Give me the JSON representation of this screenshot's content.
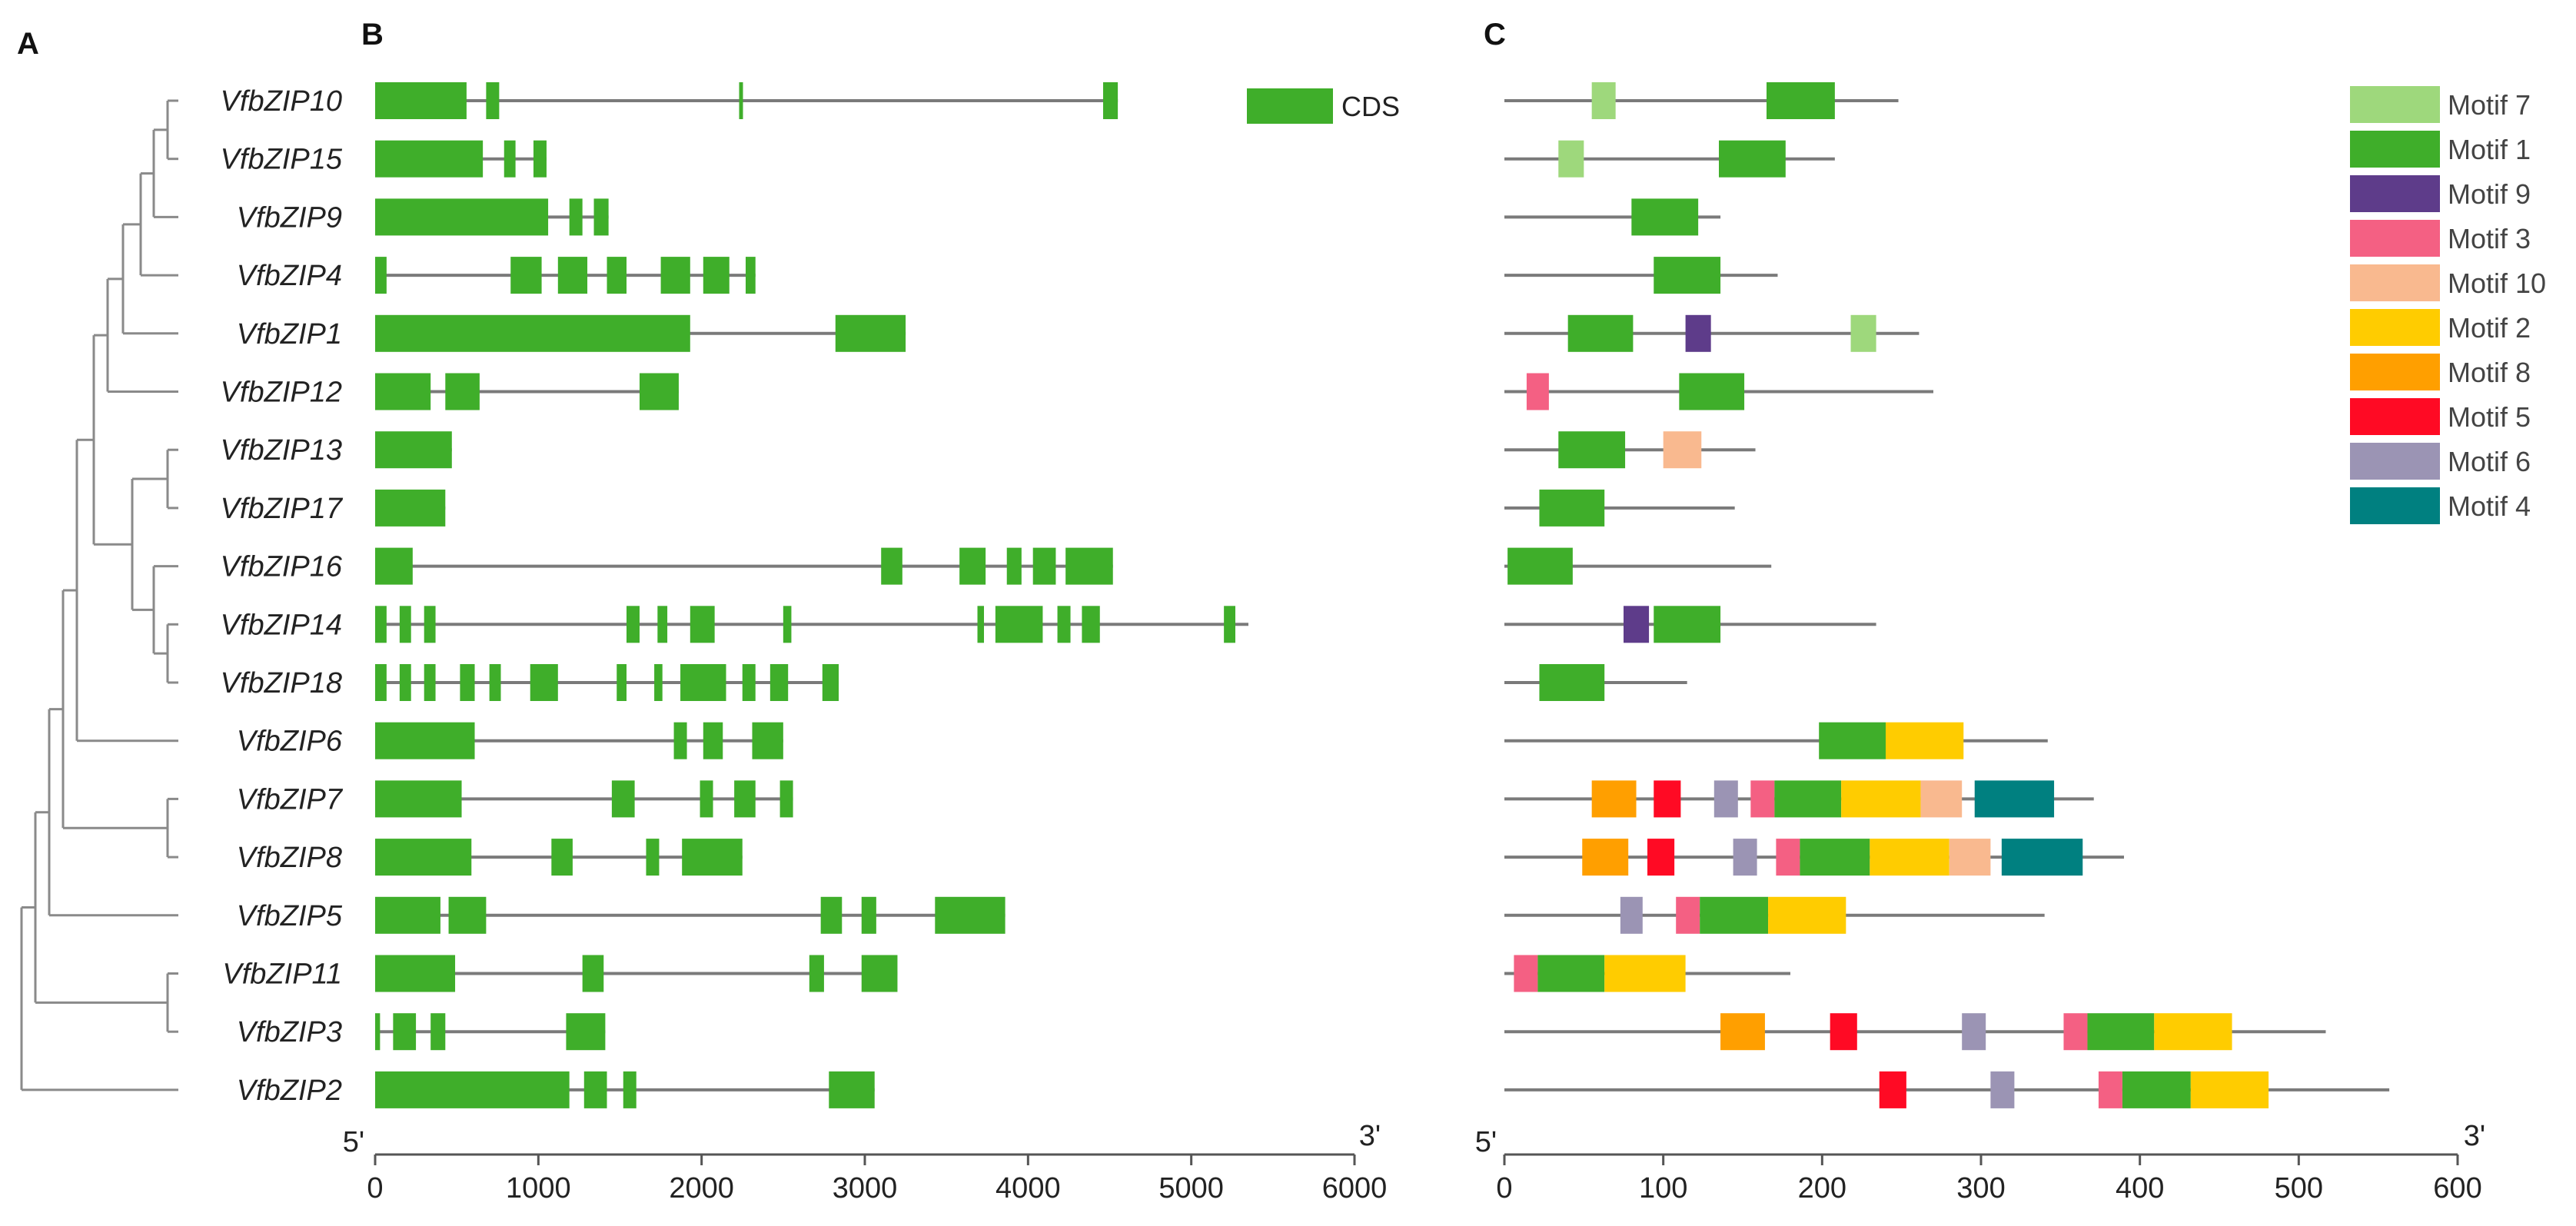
{
  "panel_labels": {
    "a": "A",
    "b": "B",
    "c": "C"
  },
  "colors": {
    "tree": "#8a8a8a",
    "intron": "#7a7a7a",
    "cds": "#3fae2a",
    "axis": "#555555",
    "text": "#222222"
  },
  "gene_structure": {
    "axis_start": "5'",
    "axis_end": "3'",
    "ticks": [
      "0",
      "1000",
      "2000",
      "3000",
      "4000",
      "5000",
      "6000"
    ],
    "axis_max": 6000,
    "legend_label": "CDS"
  },
  "motif_panel": {
    "axis_start": "5'",
    "axis_end": "3'",
    "ticks": [
      "0",
      "100",
      "200",
      "300",
      "400",
      "500",
      "600"
    ],
    "axis_max": 600
  },
  "motif_legend": [
    {
      "name": "Motif 7",
      "color": "#9ed87c"
    },
    {
      "name": "Motif 1",
      "color": "#3fae2a"
    },
    {
      "name": "Motif 9",
      "color": "#5e3c8a"
    },
    {
      "name": "Motif 3",
      "color": "#f46083"
    },
    {
      "name": "Motif 10",
      "color": "#f9b98f"
    },
    {
      "name": "Motif 2",
      "color": "#ffcc00"
    },
    {
      "name": "Motif 8",
      "color": "#ff9f00"
    },
    {
      "name": "Motif 5",
      "color": "#ff0a24"
    },
    {
      "name": "Motif 6",
      "color": "#9b94b4"
    },
    {
      "name": "Motif 4",
      "color": "#008080"
    }
  ],
  "genes": [
    {
      "name": "VfbZIP10",
      "length": 4550,
      "cds": [
        [
          0,
          560
        ],
        [
          680,
          760
        ],
        [
          2230,
          2250
        ],
        [
          4460,
          4550
        ]
      ],
      "protein_length": 248,
      "motifs": [
        [
          "Motif 7",
          55,
          70
        ],
        [
          "Motif 1",
          165,
          208
        ]
      ]
    },
    {
      "name": "VfbZIP15",
      "length": 1050,
      "cds": [
        [
          0,
          660
        ],
        [
          790,
          860
        ],
        [
          970,
          1050
        ]
      ],
      "protein_length": 208,
      "motifs": [
        [
          "Motif 7",
          34,
          50
        ],
        [
          "Motif 1",
          135,
          177
        ]
      ]
    },
    {
      "name": "VfbZIP9",
      "length": 1430,
      "cds": [
        [
          0,
          1060
        ],
        [
          1190,
          1270
        ],
        [
          1340,
          1430
        ]
      ],
      "protein_length": 136,
      "motifs": [
        [
          "Motif 1",
          80,
          122
        ]
      ]
    },
    {
      "name": "VfbZIP4",
      "length": 2330,
      "cds": [
        [
          0,
          70
        ],
        [
          830,
          1020
        ],
        [
          1120,
          1300
        ],
        [
          1420,
          1540
        ],
        [
          1750,
          1930
        ],
        [
          2010,
          2170
        ],
        [
          2270,
          2330
        ]
      ],
      "protein_length": 172,
      "motifs": [
        [
          "Motif 1",
          94,
          136
        ]
      ]
    },
    {
      "name": "VfbZIP1",
      "length": 3250,
      "cds": [
        [
          0,
          1930
        ],
        [
          2820,
          3250
        ]
      ],
      "protein_length": 261,
      "motifs": [
        [
          "Motif 1",
          40,
          81
        ],
        [
          "Motif 9",
          114,
          130
        ],
        [
          "Motif 7",
          218,
          234
        ]
      ]
    },
    {
      "name": "VfbZIP12",
      "length": 1860,
      "cds": [
        [
          0,
          340
        ],
        [
          430,
          640
        ],
        [
          1620,
          1860
        ]
      ],
      "protein_length": 270,
      "motifs": [
        [
          "Motif 3",
          14,
          28
        ],
        [
          "Motif 1",
          110,
          151
        ]
      ]
    },
    {
      "name": "VfbZIP13",
      "length": 470,
      "cds": [
        [
          0,
          470
        ]
      ],
      "protein_length": 158,
      "motifs": [
        [
          "Motif 1",
          34,
          76
        ],
        [
          "Motif 10",
          100,
          124
        ]
      ]
    },
    {
      "name": "VfbZIP17",
      "length": 430,
      "cds": [
        [
          0,
          430
        ]
      ],
      "protein_length": 145,
      "motifs": [
        [
          "Motif 1",
          22,
          63
        ]
      ]
    },
    {
      "name": "VfbZIP16",
      "length": 4520,
      "cds": [
        [
          0,
          230
        ],
        [
          3100,
          3230
        ],
        [
          3580,
          3740
        ],
        [
          3870,
          3960
        ],
        [
          4030,
          4170
        ],
        [
          4230,
          4520
        ]
      ],
      "protein_length": 168,
      "motifs": [
        [
          "Motif 1",
          2,
          43
        ]
      ]
    },
    {
      "name": "VfbZIP14",
      "length": 5350,
      "cds": [
        [
          0,
          70
        ],
        [
          150,
          220
        ],
        [
          300,
          370
        ],
        [
          1540,
          1620
        ],
        [
          1730,
          1790
        ],
        [
          1930,
          2080
        ],
        [
          2500,
          2550
        ],
        [
          3690,
          3730
        ],
        [
          3800,
          4090
        ],
        [
          4180,
          4260
        ],
        [
          4330,
          4440
        ],
        [
          5200,
          5270
        ]
      ],
      "protein_length": 234,
      "motifs": [
        [
          "Motif 9",
          75,
          91
        ],
        [
          "Motif 1",
          94,
          136
        ]
      ]
    },
    {
      "name": "VfbZIP18",
      "length": 2840,
      "cds": [
        [
          0,
          70
        ],
        [
          150,
          220
        ],
        [
          300,
          370
        ],
        [
          520,
          610
        ],
        [
          700,
          770
        ],
        [
          950,
          1120
        ],
        [
          1480,
          1540
        ],
        [
          1710,
          1760
        ],
        [
          1870,
          2150
        ],
        [
          2250,
          2330
        ],
        [
          2420,
          2530
        ],
        [
          2740,
          2840
        ]
      ],
      "protein_length": 115,
      "motifs": [
        [
          "Motif 1",
          22,
          63
        ]
      ]
    },
    {
      "name": "VfbZIP6",
      "length": 2500,
      "cds": [
        [
          0,
          610
        ],
        [
          1830,
          1910
        ],
        [
          2010,
          2130
        ],
        [
          2310,
          2500
        ]
      ],
      "protein_length": 342,
      "motifs": [
        [
          "Motif 1",
          198,
          240
        ],
        [
          "Motif 2",
          240,
          289
        ]
      ]
    },
    {
      "name": "VfbZIP7",
      "length": 2560,
      "cds": [
        [
          0,
          530
        ],
        [
          1450,
          1590
        ],
        [
          1990,
          2070
        ],
        [
          2200,
          2330
        ],
        [
          2480,
          2560
        ]
      ],
      "protein_length": 371,
      "motifs": [
        [
          "Motif 8",
          55,
          83
        ],
        [
          "Motif 5",
          94,
          111
        ],
        [
          "Motif 6",
          132,
          147
        ],
        [
          "Motif 3",
          155,
          170
        ],
        [
          "Motif 1",
          170,
          212
        ],
        [
          "Motif 2",
          212,
          262
        ],
        [
          "Motif 10",
          262,
          288
        ],
        [
          "Motif 4",
          296,
          346
        ]
      ]
    },
    {
      "name": "VfbZIP8",
      "length": 2250,
      "cds": [
        [
          0,
          590
        ],
        [
          1080,
          1210
        ],
        [
          1660,
          1740
        ],
        [
          1880,
          2250
        ]
      ],
      "protein_length": 390,
      "motifs": [
        [
          "Motif 8",
          49,
          78
        ],
        [
          "Motif 5",
          90,
          107
        ],
        [
          "Motif 6",
          144,
          159
        ],
        [
          "Motif 3",
          171,
          186
        ],
        [
          "Motif 1",
          186,
          230
        ],
        [
          "Motif 2",
          230,
          280
        ],
        [
          "Motif 10",
          280,
          306
        ],
        [
          "Motif 4",
          313,
          364
        ]
      ]
    },
    {
      "name": "VfbZIP5",
      "length": 3860,
      "cds": [
        [
          0,
          400
        ],
        [
          450,
          680
        ],
        [
          2730,
          2860
        ],
        [
          2980,
          3070
        ],
        [
          3430,
          3860
        ]
      ],
      "protein_length": 340,
      "motifs": [
        [
          "Motif 6",
          73,
          87
        ],
        [
          "Motif 3",
          108,
          123
        ],
        [
          "Motif 1",
          123,
          166
        ],
        [
          "Motif 2",
          166,
          215
        ]
      ]
    },
    {
      "name": "VfbZIP11",
      "length": 3200,
      "cds": [
        [
          0,
          490
        ],
        [
          1270,
          1400
        ],
        [
          2660,
          2750
        ],
        [
          2980,
          3200
        ]
      ],
      "protein_length": 180,
      "motifs": [
        [
          "Motif 3",
          6,
          21
        ],
        [
          "Motif 1",
          21,
          63
        ],
        [
          "Motif 2",
          63,
          114
        ]
      ]
    },
    {
      "name": "VfbZIP3",
      "length": 1410,
      "cds": [
        [
          0,
          30
        ],
        [
          110,
          250
        ],
        [
          340,
          430
        ],
        [
          1170,
          1410
        ]
      ],
      "protein_length": 517,
      "motifs": [
        [
          "Motif 8",
          136,
          164
        ],
        [
          "Motif 5",
          205,
          222
        ],
        [
          "Motif 6",
          288,
          303
        ],
        [
          "Motif 3",
          352,
          367
        ],
        [
          "Motif 1",
          367,
          409
        ],
        [
          "Motif 2",
          409,
          458
        ]
      ]
    },
    {
      "name": "VfbZIP2",
      "length": 3060,
      "cds": [
        [
          0,
          1190
        ],
        [
          1280,
          1420
        ],
        [
          1520,
          1600
        ],
        [
          2780,
          3060
        ]
      ],
      "protein_length": 557,
      "motifs": [
        [
          "Motif 5",
          236,
          253
        ],
        [
          "Motif 6",
          306,
          321
        ],
        [
          "Motif 3",
          374,
          389
        ],
        [
          "Motif 1",
          389,
          432
        ],
        [
          "Motif 2",
          432,
          481
        ]
      ]
    }
  ]
}
